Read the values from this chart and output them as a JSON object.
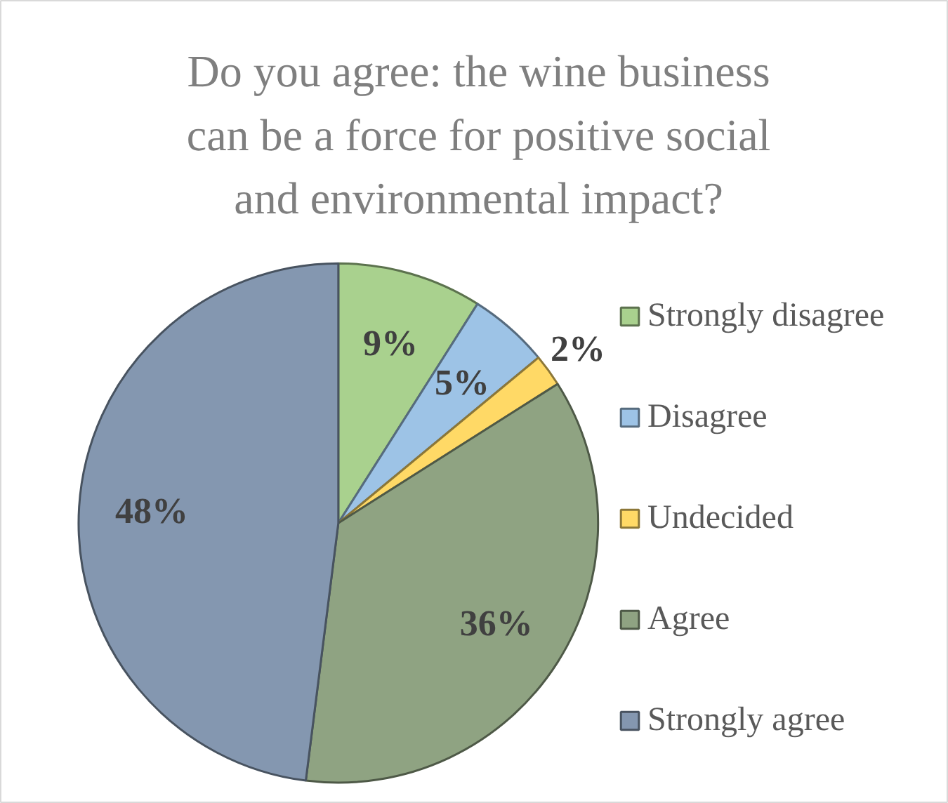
{
  "chart_data": {
    "type": "pie",
    "title": "Do you agree: the wine business can be a force for positive social and environmental impact?",
    "categories": [
      "Strongly disagree",
      "Disagree",
      "Undecided",
      "Agree",
      "Strongly agree"
    ],
    "values": [
      9,
      5,
      2,
      36,
      48
    ],
    "value_labels": [
      "9%",
      "5%",
      "2%",
      "36%",
      "48%"
    ],
    "colors": [
      "#a9d18e",
      "#9dc3e6",
      "#ffd966",
      "#8fa382",
      "#8497b0"
    ],
    "legend": "right"
  }
}
